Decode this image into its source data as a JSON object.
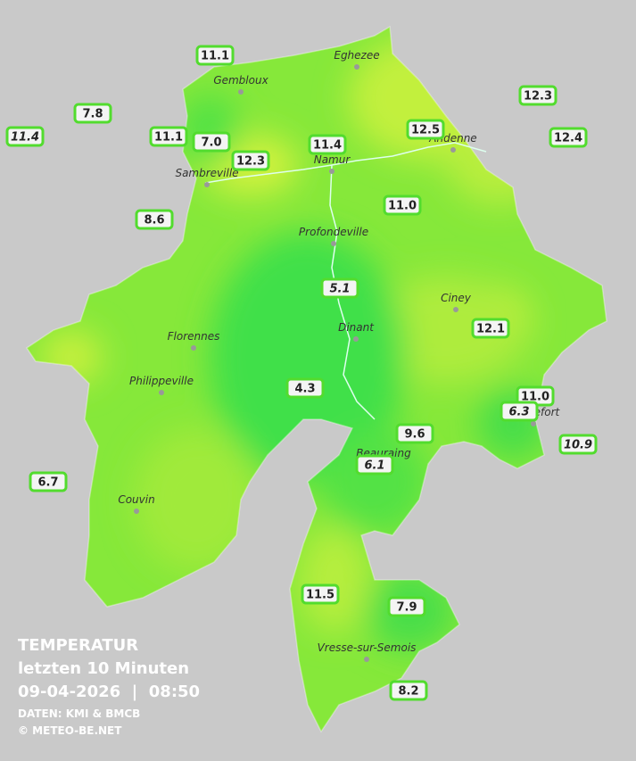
{
  "title": {
    "lines": [
      "TEMPERATUR",
      "letzten 10 Minuten",
      "09-04-2026  |  08:50"
    ],
    "source": "DATEN: KMI & BMCB",
    "copyright": "© METEO-BE.NET"
  },
  "cities": [
    "Eghezee",
    "Gembloux",
    "Andenne",
    "Namur",
    "Sambreville",
    "Profondeville",
    "Ciney",
    "Dinant",
    "Florennes",
    "Philippeville",
    "Rochefort",
    "Beauraing",
    "Couvin",
    "Vresse-sur-Semois"
  ],
  "stations": [
    {
      "label": "11.1",
      "italic": false
    },
    {
      "label": "7.8",
      "italic": false
    },
    {
      "label": "11.4",
      "italic": true
    },
    {
      "label": "11.1",
      "italic": false
    },
    {
      "label": "7.0",
      "italic": false
    },
    {
      "label": "12.3",
      "italic": false
    },
    {
      "label": "11.4",
      "italic": false
    },
    {
      "label": "12.5",
      "italic": false
    },
    {
      "label": "12.3",
      "italic": false
    },
    {
      "label": "12.4",
      "italic": false
    },
    {
      "label": "8.6",
      "italic": false
    },
    {
      "label": "11.0",
      "italic": false
    },
    {
      "label": "5.1",
      "italic": true
    },
    {
      "label": "12.1",
      "italic": false
    },
    {
      "label": "4.3",
      "italic": false
    },
    {
      "label": "11.0",
      "italic": false
    },
    {
      "label": "6.3",
      "italic": true
    },
    {
      "label": "9.6",
      "italic": false
    },
    {
      "label": "10.9",
      "italic": true
    },
    {
      "label": "6.1",
      "italic": true
    },
    {
      "label": "6.7",
      "italic": false
    },
    {
      "label": "11.5",
      "italic": false
    },
    {
      "label": "7.9",
      "italic": false
    },
    {
      "label": "8.2",
      "italic": false
    }
  ]
}
